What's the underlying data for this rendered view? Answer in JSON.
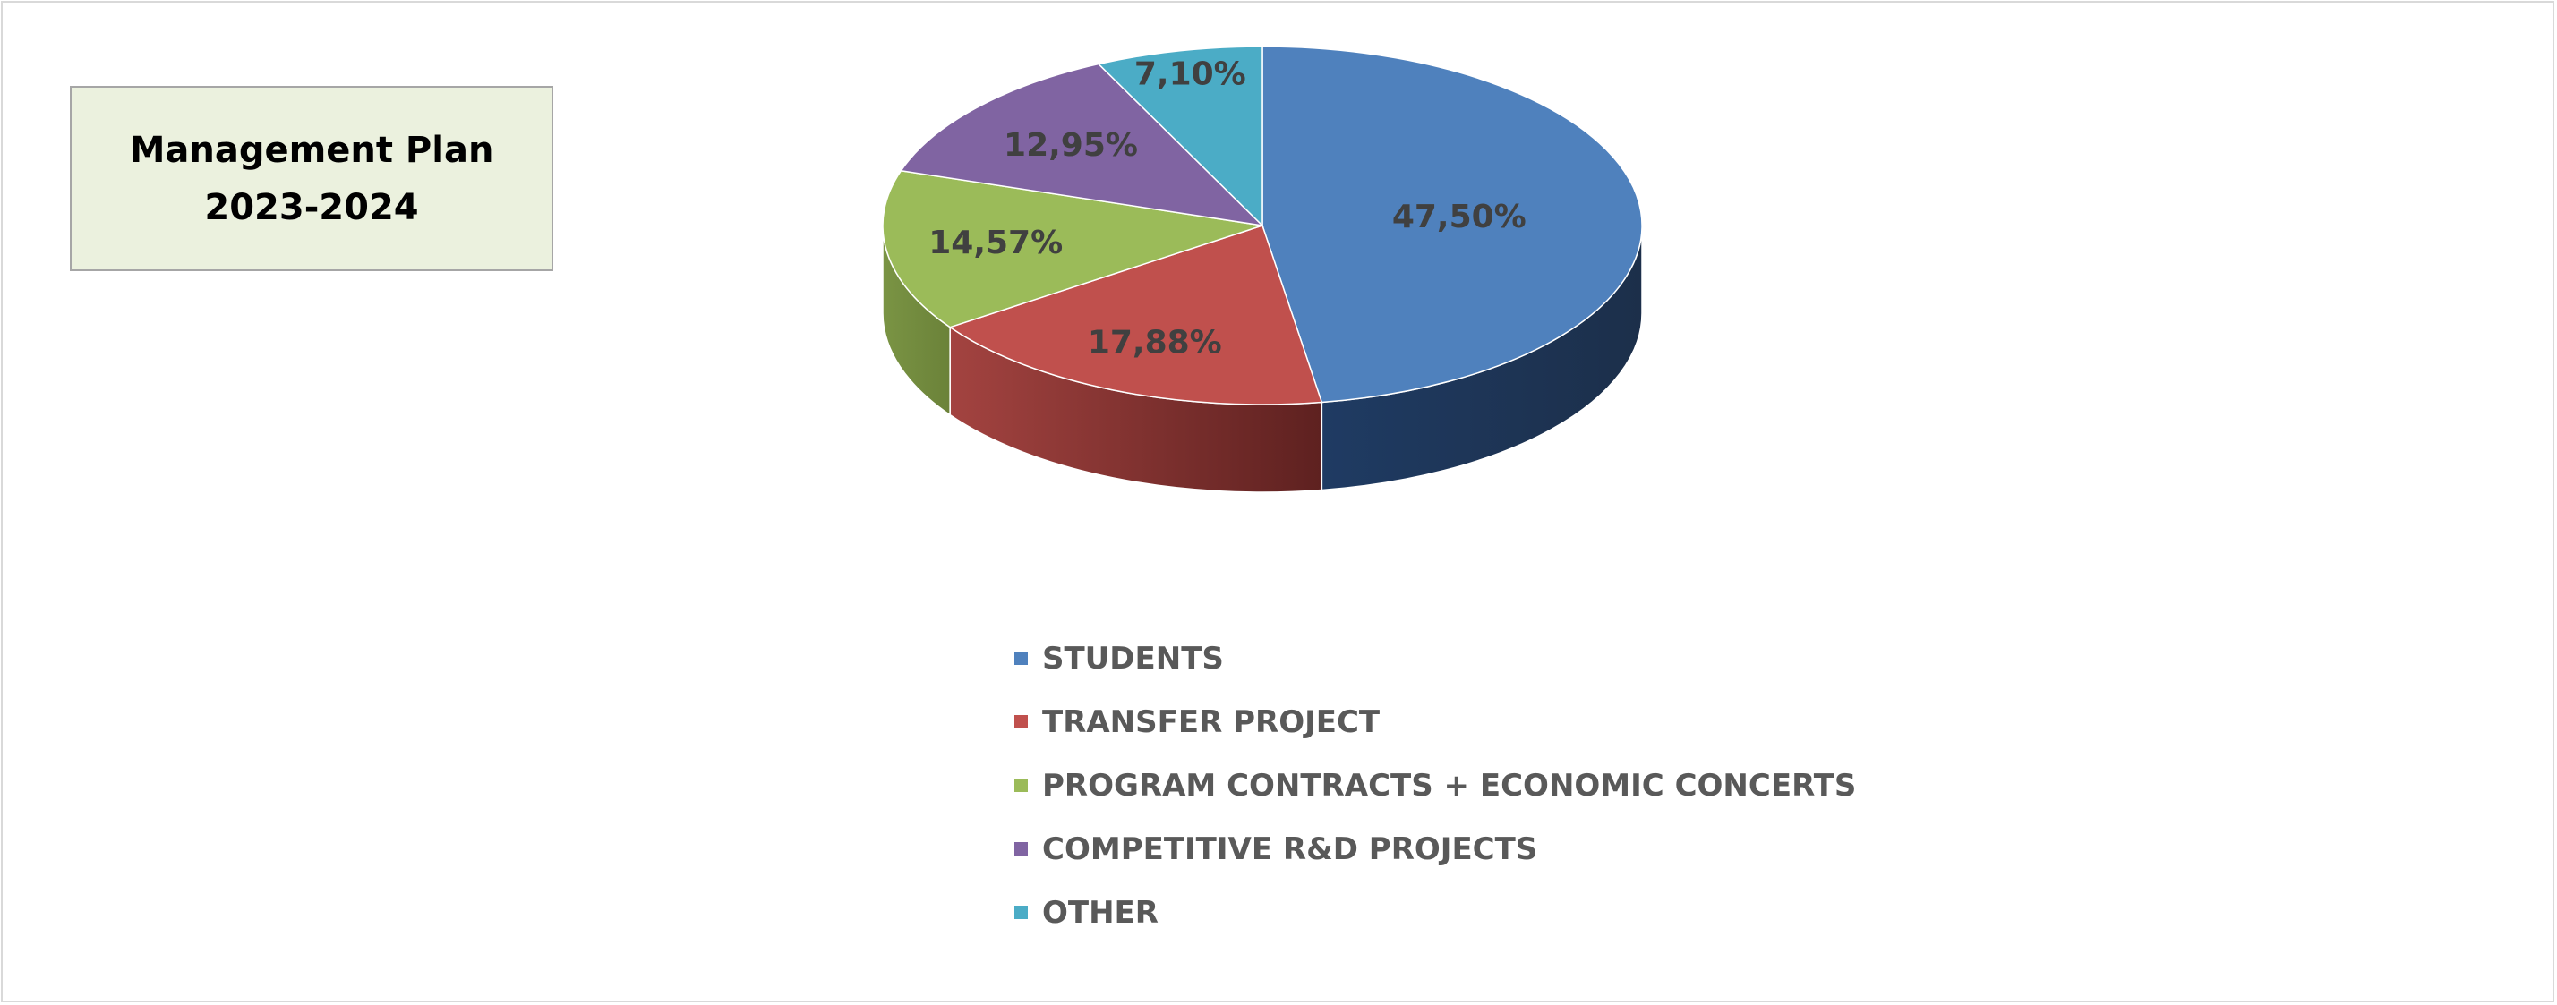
{
  "title": {
    "line1": "Management Plan",
    "line2": "2023-2024"
  },
  "chart_data": {
    "type": "pie",
    "style": "3d",
    "categories": [
      "STUDENTS",
      "TRANSFER PROJECT",
      "PROGRAM CONTRACTS + ECONOMIC CONCERTS",
      "COMPETITIVE R&D PROJECTS",
      "OTHER"
    ],
    "values": [
      47.5,
      17.88,
      14.57,
      12.95,
      7.1
    ],
    "labels": [
      "47,50%",
      "17,88%",
      "14,57%",
      "12,95%",
      "7,10%"
    ],
    "colors": [
      "#4f81bd",
      "#c0504d",
      "#9bbb59",
      "#8064a2",
      "#4bacc6"
    ],
    "legend_position": "bottom",
    "unit": "%"
  }
}
